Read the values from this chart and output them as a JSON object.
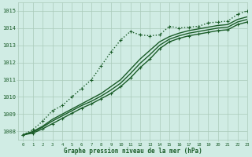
{
  "title": "Graphe pression niveau de la mer (hPa)",
  "background_color": "#d0ece4",
  "grid_color": "#aacaba",
  "line_color": "#1a5c28",
  "xlim": [
    -0.5,
    23
  ],
  "ylim": [
    1007.5,
    1015.5
  ],
  "yticks": [
    1008,
    1009,
    1010,
    1011,
    1012,
    1013,
    1014,
    1015
  ],
  "xticks": [
    0,
    1,
    2,
    3,
    4,
    5,
    6,
    7,
    8,
    9,
    10,
    11,
    12,
    13,
    14,
    15,
    16,
    17,
    18,
    19,
    20,
    21,
    22,
    23
  ],
  "series": [
    {
      "x": [
        0,
        1,
        2,
        3,
        4,
        5,
        6,
        7,
        8,
        9,
        10,
        11,
        12,
        13,
        14,
        15,
        16,
        17,
        18,
        19,
        20,
        21,
        22,
        23
      ],
      "y": [
        1007.8,
        1008.1,
        1008.6,
        1009.2,
        1009.5,
        1010.0,
        1010.5,
        1011.0,
        1011.8,
        1012.6,
        1013.3,
        1013.8,
        1013.6,
        1013.55,
        1013.6,
        1014.1,
        1014.0,
        1014.05,
        1014.1,
        1014.3,
        1014.35,
        1014.4,
        1014.8,
        1015.0
      ],
      "marker": "+",
      "linewidth": 1.0,
      "linestyle": ":"
    },
    {
      "x": [
        0,
        1,
        2,
        3,
        4,
        5,
        6,
        7,
        8,
        9,
        10,
        11,
        12,
        13,
        14,
        15,
        16,
        17,
        18,
        19,
        20,
        21,
        22,
        23
      ],
      "y": [
        1007.8,
        1008.0,
        1008.3,
        1008.7,
        1009.0,
        1009.3,
        1009.6,
        1009.9,
        1010.2,
        1010.6,
        1011.0,
        1011.6,
        1012.2,
        1012.7,
        1013.2,
        1013.5,
        1013.7,
        1013.85,
        1013.95,
        1014.05,
        1014.15,
        1014.2,
        1014.5,
        1014.65
      ],
      "marker": null,
      "linewidth": 1.0,
      "linestyle": "-"
    },
    {
      "x": [
        0,
        1,
        2,
        3,
        4,
        5,
        6,
        7,
        8,
        9,
        10,
        11,
        12,
        13,
        14,
        15,
        16,
        17,
        18,
        19,
        20,
        21,
        22,
        23
      ],
      "y": [
        1007.8,
        1007.95,
        1008.25,
        1008.6,
        1008.9,
        1009.2,
        1009.5,
        1009.75,
        1010.05,
        1010.4,
        1010.8,
        1011.35,
        1011.95,
        1012.45,
        1013.0,
        1013.35,
        1013.55,
        1013.7,
        1013.8,
        1013.9,
        1014.0,
        1014.05,
        1014.35,
        1014.5
      ],
      "marker": null,
      "linewidth": 1.0,
      "linestyle": "-"
    },
    {
      "x": [
        0,
        1,
        2,
        3,
        4,
        5,
        6,
        7,
        8,
        9,
        10,
        11,
        12,
        13,
        14,
        15,
        16,
        17,
        18,
        19,
        20,
        21,
        22,
        23
      ],
      "y": [
        1007.8,
        1007.9,
        1008.15,
        1008.45,
        1008.75,
        1009.05,
        1009.35,
        1009.6,
        1009.9,
        1010.2,
        1010.6,
        1011.1,
        1011.7,
        1012.2,
        1012.8,
        1013.2,
        1013.4,
        1013.55,
        1013.65,
        1013.75,
        1013.85,
        1013.9,
        1014.2,
        1014.35
      ],
      "marker": "+",
      "linewidth": 1.0,
      "linestyle": "-"
    }
  ]
}
